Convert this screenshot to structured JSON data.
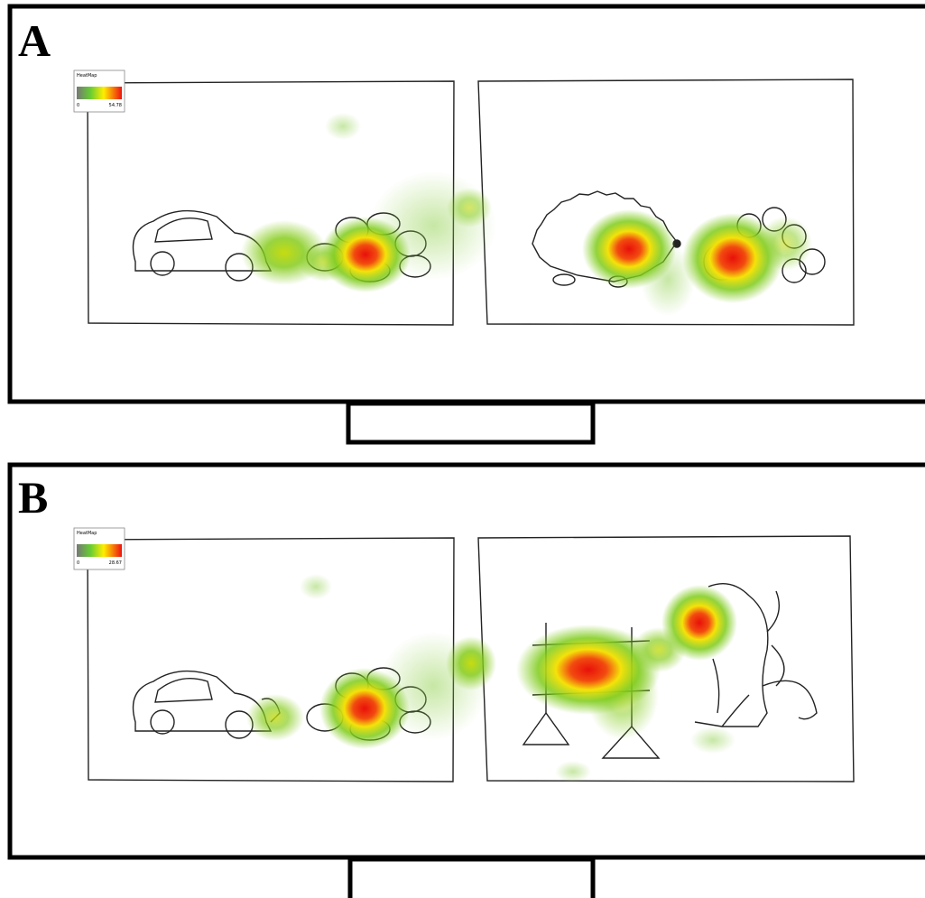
{
  "panels": [
    {
      "label": "A",
      "legend": {
        "title": "HeatMap",
        "min": 0,
        "max": 54.78
      }
    },
    {
      "label": "B",
      "legend": {
        "title": "HeatMap",
        "min": 0,
        "max": 28.67
      }
    }
  ]
}
